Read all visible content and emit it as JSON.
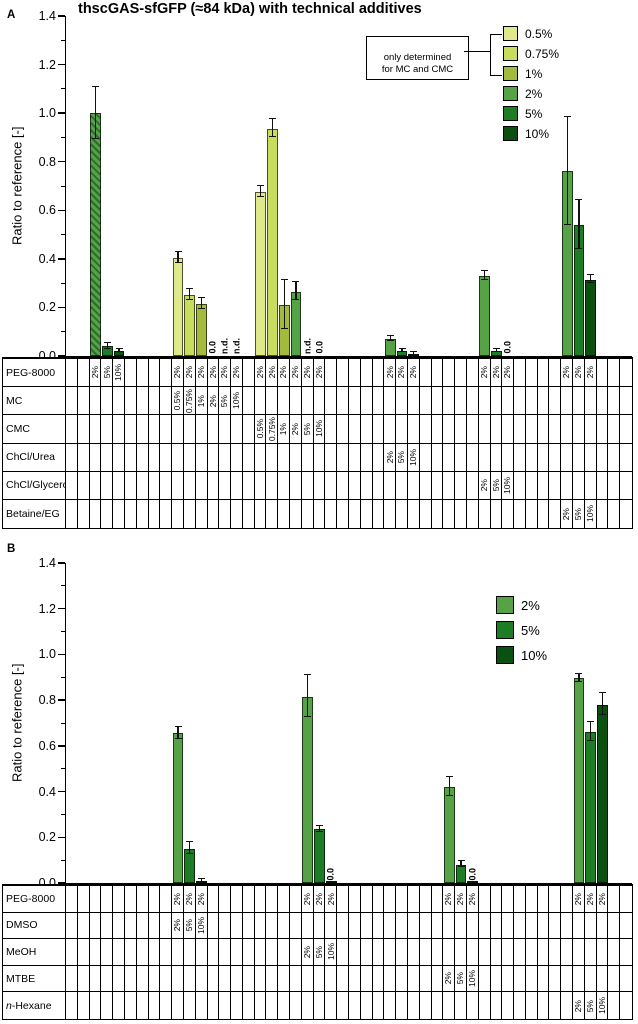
{
  "header": {
    "title": "thscGAS-sfGFP (≈84 kDa) with technical additives"
  },
  "colors": {
    "0.5%": "#dfe98a",
    "0.75%": "#c8dc5e",
    "1%": "#a2bb3c",
    "2%": "#55a247",
    "5%": "#1d7d25",
    "10%": "#0b4f11",
    "hatch_stripe": "#2e6b2e",
    "axis": "#000000",
    "error_bar": "#111111"
  },
  "chart_data": [
    {
      "type": "bar",
      "panel_label": "A",
      "ylabel": "Ratio to reference [-]",
      "ylim": [
        0,
        1.4
      ],
      "ytick_step": 0.2,
      "yticks": [
        "0.0",
        "0.2",
        "0.4",
        "0.6",
        "0.8",
        "1.0",
        "1.2",
        "1.4"
      ],
      "legend": [
        "0.5%",
        "0.75%",
        "1%",
        "2%",
        "5%",
        "10%"
      ],
      "legend_note": "only determined\nfor MC and CMC",
      "columns": 48,
      "table_rows": [
        "PEG-8000",
        "MC",
        "CMC",
        "ChCl/Urea",
        "ChCl/Glycerol",
        "Betaine/EG"
      ],
      "groups": [
        {
          "name": "PEG-8000",
          "start_col": 3,
          "peg_row": null,
          "bars": [
            {
              "conc": "2%",
              "value": 1.0,
              "err": 0.105,
              "hatch": true
            },
            {
              "conc": "5%",
              "value": 0.04,
              "err": 0.01
            },
            {
              "conc": "10%",
              "value": 0.02,
              "err": 0.005
            }
          ]
        },
        {
          "name": "MC",
          "start_col": 10,
          "peg_row": "2%",
          "bars": [
            {
              "conc": "0.5%",
              "value": 0.405,
              "err": 0.02
            },
            {
              "conc": "0.75%",
              "value": 0.25,
              "err": 0.02
            },
            {
              "conc": "1%",
              "value": 0.215,
              "err": 0.02
            },
            {
              "conc": "2%",
              "value": 0,
              "label": "0.0"
            },
            {
              "conc": "5%",
              "value": null,
              "label": "n.d."
            },
            {
              "conc": "10%",
              "value": null,
              "label": "n.d."
            }
          ]
        },
        {
          "name": "CMC",
          "start_col": 17,
          "peg_row": "2%",
          "bars": [
            {
              "conc": "0.5%",
              "value": 0.675,
              "err": 0.02
            },
            {
              "conc": "0.75%",
              "value": 0.935,
              "err": 0.035
            },
            {
              "conc": "1%",
              "value": 0.21,
              "err": 0.1
            },
            {
              "conc": "2%",
              "value": 0.265,
              "err": 0.035
            },
            {
              "conc": "5%",
              "value": null,
              "label": "n.d."
            },
            {
              "conc": "10%",
              "value": 0,
              "label": "0.0"
            }
          ]
        },
        {
          "name": "ChCl/Urea",
          "start_col": 28,
          "peg_row": "2%",
          "bars": [
            {
              "conc": "2%",
              "value": 0.07,
              "err": 0.01
            },
            {
              "conc": "5%",
              "value": 0.02,
              "err": 0.005
            },
            {
              "conc": "10%",
              "value": 0.01,
              "err": 0.004
            }
          ]
        },
        {
          "name": "ChCl/Glycerol",
          "start_col": 36,
          "peg_row": "2%",
          "bars": [
            {
              "conc": "2%",
              "value": 0.33,
              "err": 0.015
            },
            {
              "conc": "5%",
              "value": 0.02,
              "err": 0.005
            },
            {
              "conc": "10%",
              "value": 0,
              "label": "0.0"
            }
          ]
        },
        {
          "name": "Betaine/EG",
          "start_col": 43,
          "peg_row": "2%",
          "bars": [
            {
              "conc": "2%",
              "value": 0.76,
              "err": 0.22
            },
            {
              "conc": "5%",
              "value": 0.54,
              "err": 0.1
            },
            {
              "conc": "10%",
              "value": 0.315,
              "err": 0.015
            }
          ]
        }
      ]
    },
    {
      "type": "bar",
      "panel_label": "B",
      "ylabel": "Ratio to reference [-]",
      "ylim": [
        0,
        1.4
      ],
      "ytick_step": 0.2,
      "yticks": [
        "0.0",
        "0.2",
        "0.4",
        "0.6",
        "0.8",
        "1.0",
        "1.2",
        "1.4"
      ],
      "legend": [
        "2%",
        "5%",
        "10%"
      ],
      "legend_note": null,
      "columns": 48,
      "table_rows": [
        "PEG-8000",
        "DMSO",
        "MeOH",
        "MTBE",
        "n-Hexane"
      ],
      "groups": [
        {
          "name": "DMSO",
          "start_col": 10,
          "peg_row": "2%",
          "bars": [
            {
              "conc": "2%",
              "value": 0.655,
              "err": 0.025
            },
            {
              "conc": "5%",
              "value": 0.15,
              "err": 0.025
            },
            {
              "conc": "10%",
              "value": 0.01,
              "err": 0.004
            }
          ]
        },
        {
          "name": "MeOH",
          "start_col": 21,
          "peg_row": "2%",
          "bars": [
            {
              "conc": "2%",
              "value": 0.815,
              "err": 0.09
            },
            {
              "conc": "5%",
              "value": 0.235,
              "err": 0.012
            },
            {
              "conc": "10%",
              "value": 0.004,
              "label": "0.0"
            }
          ]
        },
        {
          "name": "MTBE",
          "start_col": 33,
          "peg_row": "2%",
          "bars": [
            {
              "conc": "2%",
              "value": 0.42,
              "err": 0.04
            },
            {
              "conc": "5%",
              "value": 0.08,
              "err": 0.012
            },
            {
              "conc": "10%",
              "value": 0.004,
              "label": "0.0"
            }
          ]
        },
        {
          "name": "n-Hexane",
          "start_col": 44,
          "peg_row": "2%",
          "bars": [
            {
              "conc": "2%",
              "value": 0.895,
              "err": 0.015
            },
            {
              "conc": "5%",
              "value": 0.66,
              "err": 0.04
            },
            {
              "conc": "10%",
              "value": 0.78,
              "err": 0.045
            }
          ]
        }
      ]
    }
  ]
}
